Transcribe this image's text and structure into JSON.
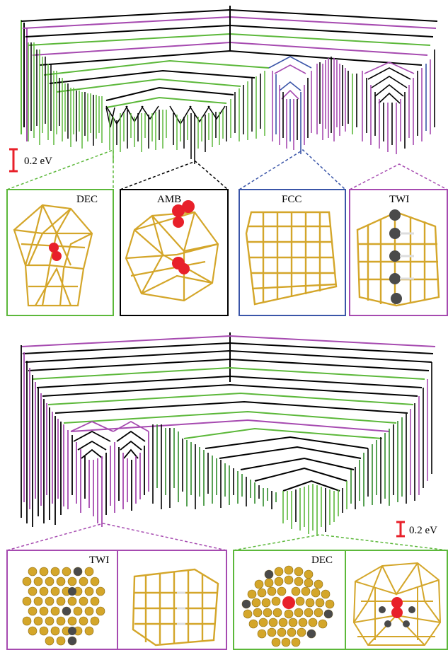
{
  "colors": {
    "green": "#5cb83a",
    "dark_green": "#2f8a2a",
    "magenta": "#a64ab0",
    "blue": "#3a55a8",
    "black": "#000000",
    "red": "#e8202a",
    "gold": "#d4a62a",
    "gray_atom": "#4a4a4a"
  },
  "top_panel": {
    "scale_bar_label": "0.2 eV",
    "insets": [
      {
        "label": "DEC",
        "border_color": "green",
        "motif": "decahedron-with-red-atom"
      },
      {
        "label": "AMB",
        "border_color": "black",
        "motif": "amorphous-with-red-atoms"
      },
      {
        "label": "FCC",
        "border_color": "blue",
        "motif": "fcc-cluster"
      },
      {
        "label": "TWI",
        "border_color": "magenta",
        "motif": "twin-with-gray-atoms"
      }
    ]
  },
  "bottom_panel": {
    "scale_bar_label": "0.2 eV",
    "insets": [
      {
        "label": "TWI",
        "border_color": "magenta",
        "motif": "twin-top-and-side-views"
      },
      {
        "label": "DEC",
        "border_color": "green",
        "motif": "decahedron-top-and-side-views"
      }
    ]
  }
}
